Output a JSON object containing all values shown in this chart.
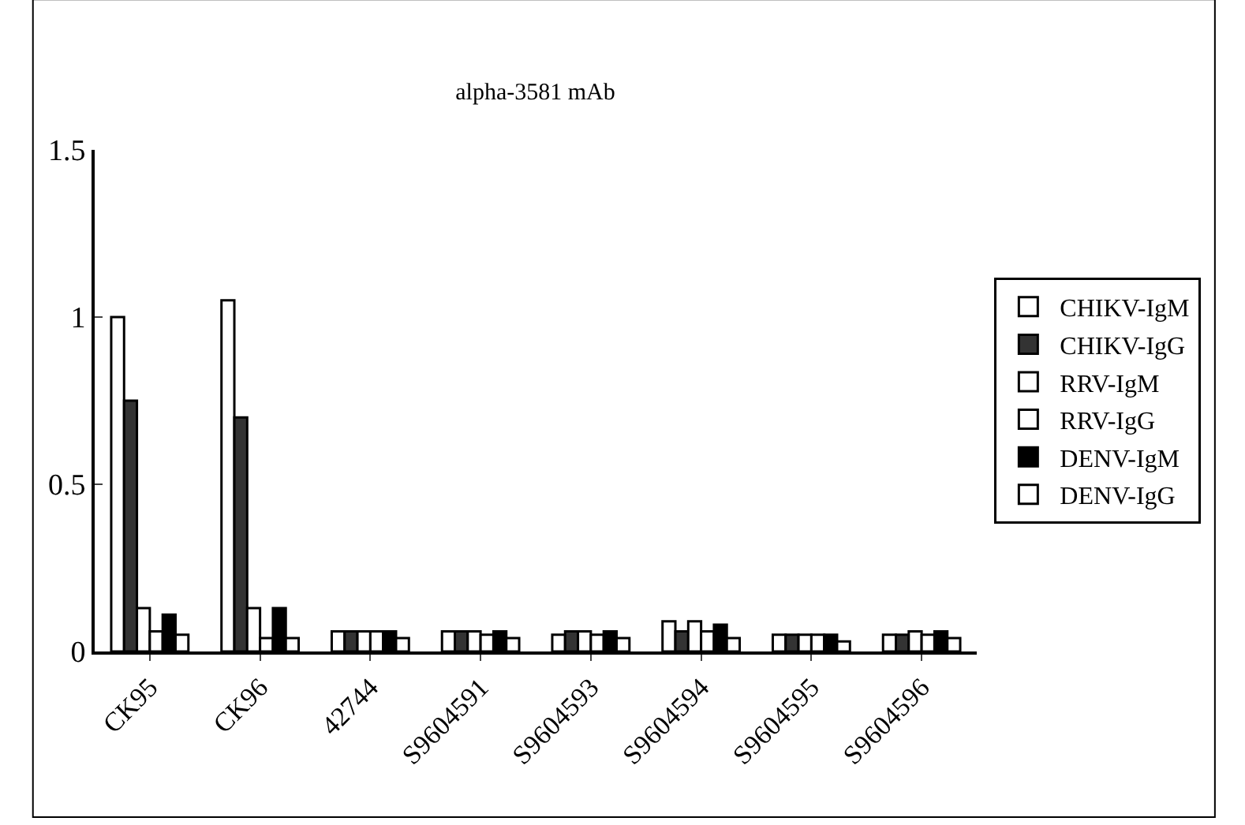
{
  "chart_data": {
    "type": "bar",
    "title": "alpha-3581 mAb",
    "categories": [
      "CK95",
      "CK96",
      "42744",
      "S9604591",
      "S9604593",
      "S9604594",
      "S9604595",
      "S9604596"
    ],
    "series": [
      {
        "name": "CHIKV-IgM",
        "color": "#ffffff",
        "values": [
          1.0,
          1.05,
          0.06,
          0.06,
          0.05,
          0.09,
          0.05,
          0.05
        ]
      },
      {
        "name": "CHIKV-IgG",
        "color": "#333333",
        "values": [
          0.75,
          0.7,
          0.06,
          0.06,
          0.06,
          0.06,
          0.05,
          0.05
        ]
      },
      {
        "name": "RRV-IgM",
        "color": "#ffffff",
        "values": [
          0.13,
          0.13,
          0.06,
          0.06,
          0.06,
          0.09,
          0.05,
          0.06
        ]
      },
      {
        "name": "RRV-IgG",
        "color": "#ffffff",
        "values": [
          0.06,
          0.04,
          0.06,
          0.05,
          0.05,
          0.06,
          0.05,
          0.05
        ]
      },
      {
        "name": "DENV-IgM",
        "color": "#000000",
        "values": [
          0.11,
          0.13,
          0.06,
          0.06,
          0.06,
          0.08,
          0.05,
          0.06
        ]
      },
      {
        "name": "DENV-IgG",
        "color": "#ffffff",
        "values": [
          0.05,
          0.04,
          0.04,
          0.04,
          0.04,
          0.04,
          0.03,
          0.04
        ]
      }
    ],
    "ylim": [
      0,
      1.5
    ],
    "yticks": [
      0,
      0.5,
      1,
      1.5
    ],
    "grid": false,
    "legend": "right"
  }
}
